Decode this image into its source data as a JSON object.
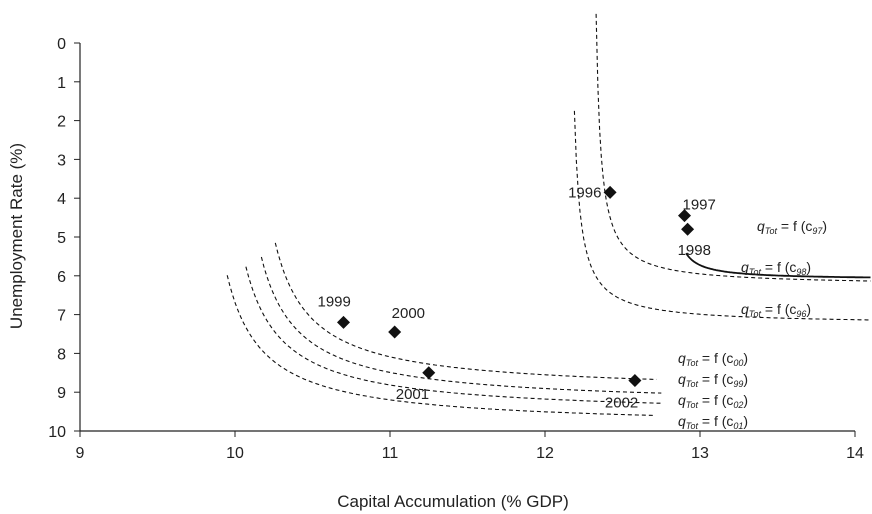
{
  "chart_data": {
    "type": "scatter",
    "title": "",
    "xlabel": "Capital Accumulation (% GDP)",
    "ylabel": "Unemployment Rate (%)",
    "xlim": [
      9,
      14
    ],
    "ylim": [
      0,
      10
    ],
    "y_inverted": true,
    "grid": false,
    "x_ticks": [
      "9",
      "10",
      "11",
      "12",
      "13",
      "14"
    ],
    "y_ticks": [
      "0",
      "1",
      "2",
      "3",
      "4",
      "5",
      "6",
      "7",
      "8",
      "9",
      "10"
    ],
    "points": [
      {
        "label": "1996",
        "x": 12.42,
        "y": 3.85
      },
      {
        "label": "1997",
        "x": 12.9,
        "y": 4.45
      },
      {
        "label": "1998",
        "x": 12.92,
        "y": 4.8
      },
      {
        "label": "1999",
        "x": 10.7,
        "y": 7.2
      },
      {
        "label": "2000",
        "x": 11.03,
        "y": 7.45
      },
      {
        "label": "2001",
        "x": 11.25,
        "y": 8.5
      },
      {
        "label": "2002",
        "x": 12.58,
        "y": 8.7
      }
    ],
    "curves": [
      {
        "year": "97",
        "label_q": "q",
        "label_sub": "Tot",
        "label_rest": " = f (c",
        "label_end": ")",
        "style": "solid",
        "x0": 12.8,
        "k": 0.075,
        "y0": 6.1,
        "x_start": 12.91,
        "x_end": 14.1
      },
      {
        "year": "98",
        "label_q": "q",
        "label_sub": "Tot",
        "label_rest": " = f (c",
        "label_end": ")",
        "style": "dashed",
        "x0": 12.3,
        "k": 0.21,
        "y0": 6.25,
        "x_start": 12.33,
        "x_end": 14.1
      },
      {
        "year": "96",
        "label_q": "q",
        "label_sub": "Tot",
        "label_rest": " = f (c",
        "label_end": ")",
        "style": "dashed",
        "x0": 12.15,
        "k": 0.22,
        "y0": 7.25,
        "x_start": 12.19,
        "x_end": 14.1
      },
      {
        "year": "00",
        "label_q": "q",
        "label_sub": "Tot",
        "label_rest": " = f (c",
        "label_end": ")",
        "style": "dashed",
        "x0": 10.03,
        "k": 0.885,
        "y0": 9.0,
        "x_start": 10.26,
        "x_end": 12.72
      },
      {
        "year": "99",
        "label_q": "q",
        "label_sub": "Tot",
        "label_rest": " = f (c",
        "label_end": ")",
        "style": "dashed",
        "x0": 9.93,
        "k": 0.92,
        "y0": 9.35,
        "x_start": 10.17,
        "x_end": 12.75
      },
      {
        "year": "02",
        "label_q": "q",
        "label_sub": "Tot",
        "label_rest": " = f (c",
        "label_end": ")",
        "style": "dashed",
        "x0": 9.83,
        "k": 0.92,
        "y0": 9.6,
        "x_start": 10.07,
        "x_end": 12.76
      },
      {
        "year": "01",
        "label_q": "q",
        "label_sub": "Tot",
        "label_rest": " = f (c",
        "label_end": ")",
        "style": "dashed",
        "x0": 9.72,
        "k": 0.9,
        "y0": 9.9,
        "x_start": 9.95,
        "x_end": 12.7
      }
    ]
  }
}
